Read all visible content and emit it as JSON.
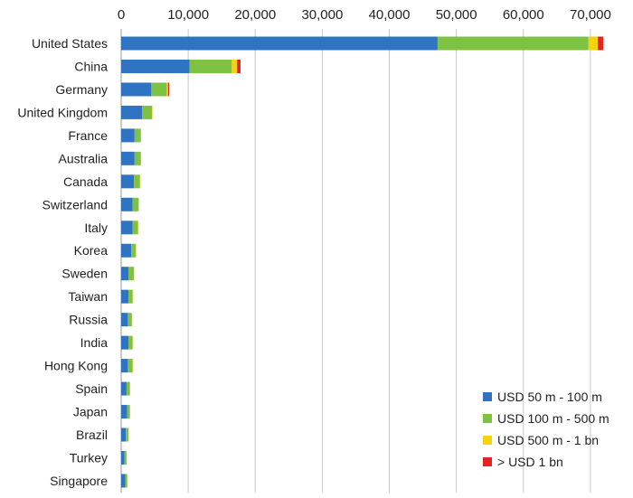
{
  "chart_data": {
    "type": "bar",
    "orientation": "horizontal",
    "stacked": true,
    "title": "",
    "xlabel": "",
    "ylabel": "",
    "xlim": [
      0,
      75000
    ],
    "x_ticks": [
      0,
      10000,
      20000,
      30000,
      40000,
      50000,
      60000,
      70000
    ],
    "x_tick_labels": [
      "0",
      "10,000",
      "20,000",
      "30,000",
      "40,000",
      "50,000",
      "60,000",
      "70,000"
    ],
    "x_axis_position": "top",
    "grid": true,
    "legend_position": "bottom-right",
    "categories": [
      "United States",
      "China",
      "Germany",
      "United Kingdom",
      "France",
      "Australia",
      "Canada",
      "Switzerland",
      "Italy",
      "Korea",
      "Sweden",
      "Taiwan",
      "Russia",
      "India",
      "Hong Kong",
      "Spain",
      "Japan",
      "Brazil",
      "Turkey",
      "Singapore"
    ],
    "series": [
      {
        "name": "USD 50 m - 100 m",
        "color": "#2f74c3",
        "values": [
          47200,
          10200,
          4500,
          3100,
          2000,
          2000,
          1900,
          1700,
          1700,
          1500,
          1100,
          1100,
          1000,
          1100,
          1000,
          800,
          900,
          700,
          500,
          600
        ]
      },
      {
        "name": "USD 100 m - 500 m",
        "color": "#7dc243",
        "values": [
          22500,
          6300,
          2300,
          1500,
          900,
          900,
          900,
          900,
          800,
          700,
          800,
          600,
          600,
          600,
          700,
          500,
          400,
          400,
          300,
          300
        ]
      },
      {
        "name": "USD 500 m - 1 bn",
        "color": "#f5d10f",
        "values": [
          1400,
          800,
          200,
          80,
          60,
          60,
          60,
          60,
          50,
          40,
          40,
          40,
          40,
          30,
          40,
          30,
          20,
          20,
          20,
          20
        ]
      },
      {
        "name": "> USD 1 bn",
        "color": "#e32424",
        "values": [
          800,
          500,
          150,
          0,
          0,
          0,
          0,
          0,
          0,
          0,
          0,
          0,
          0,
          0,
          0,
          0,
          0,
          0,
          0,
          0
        ]
      }
    ]
  }
}
